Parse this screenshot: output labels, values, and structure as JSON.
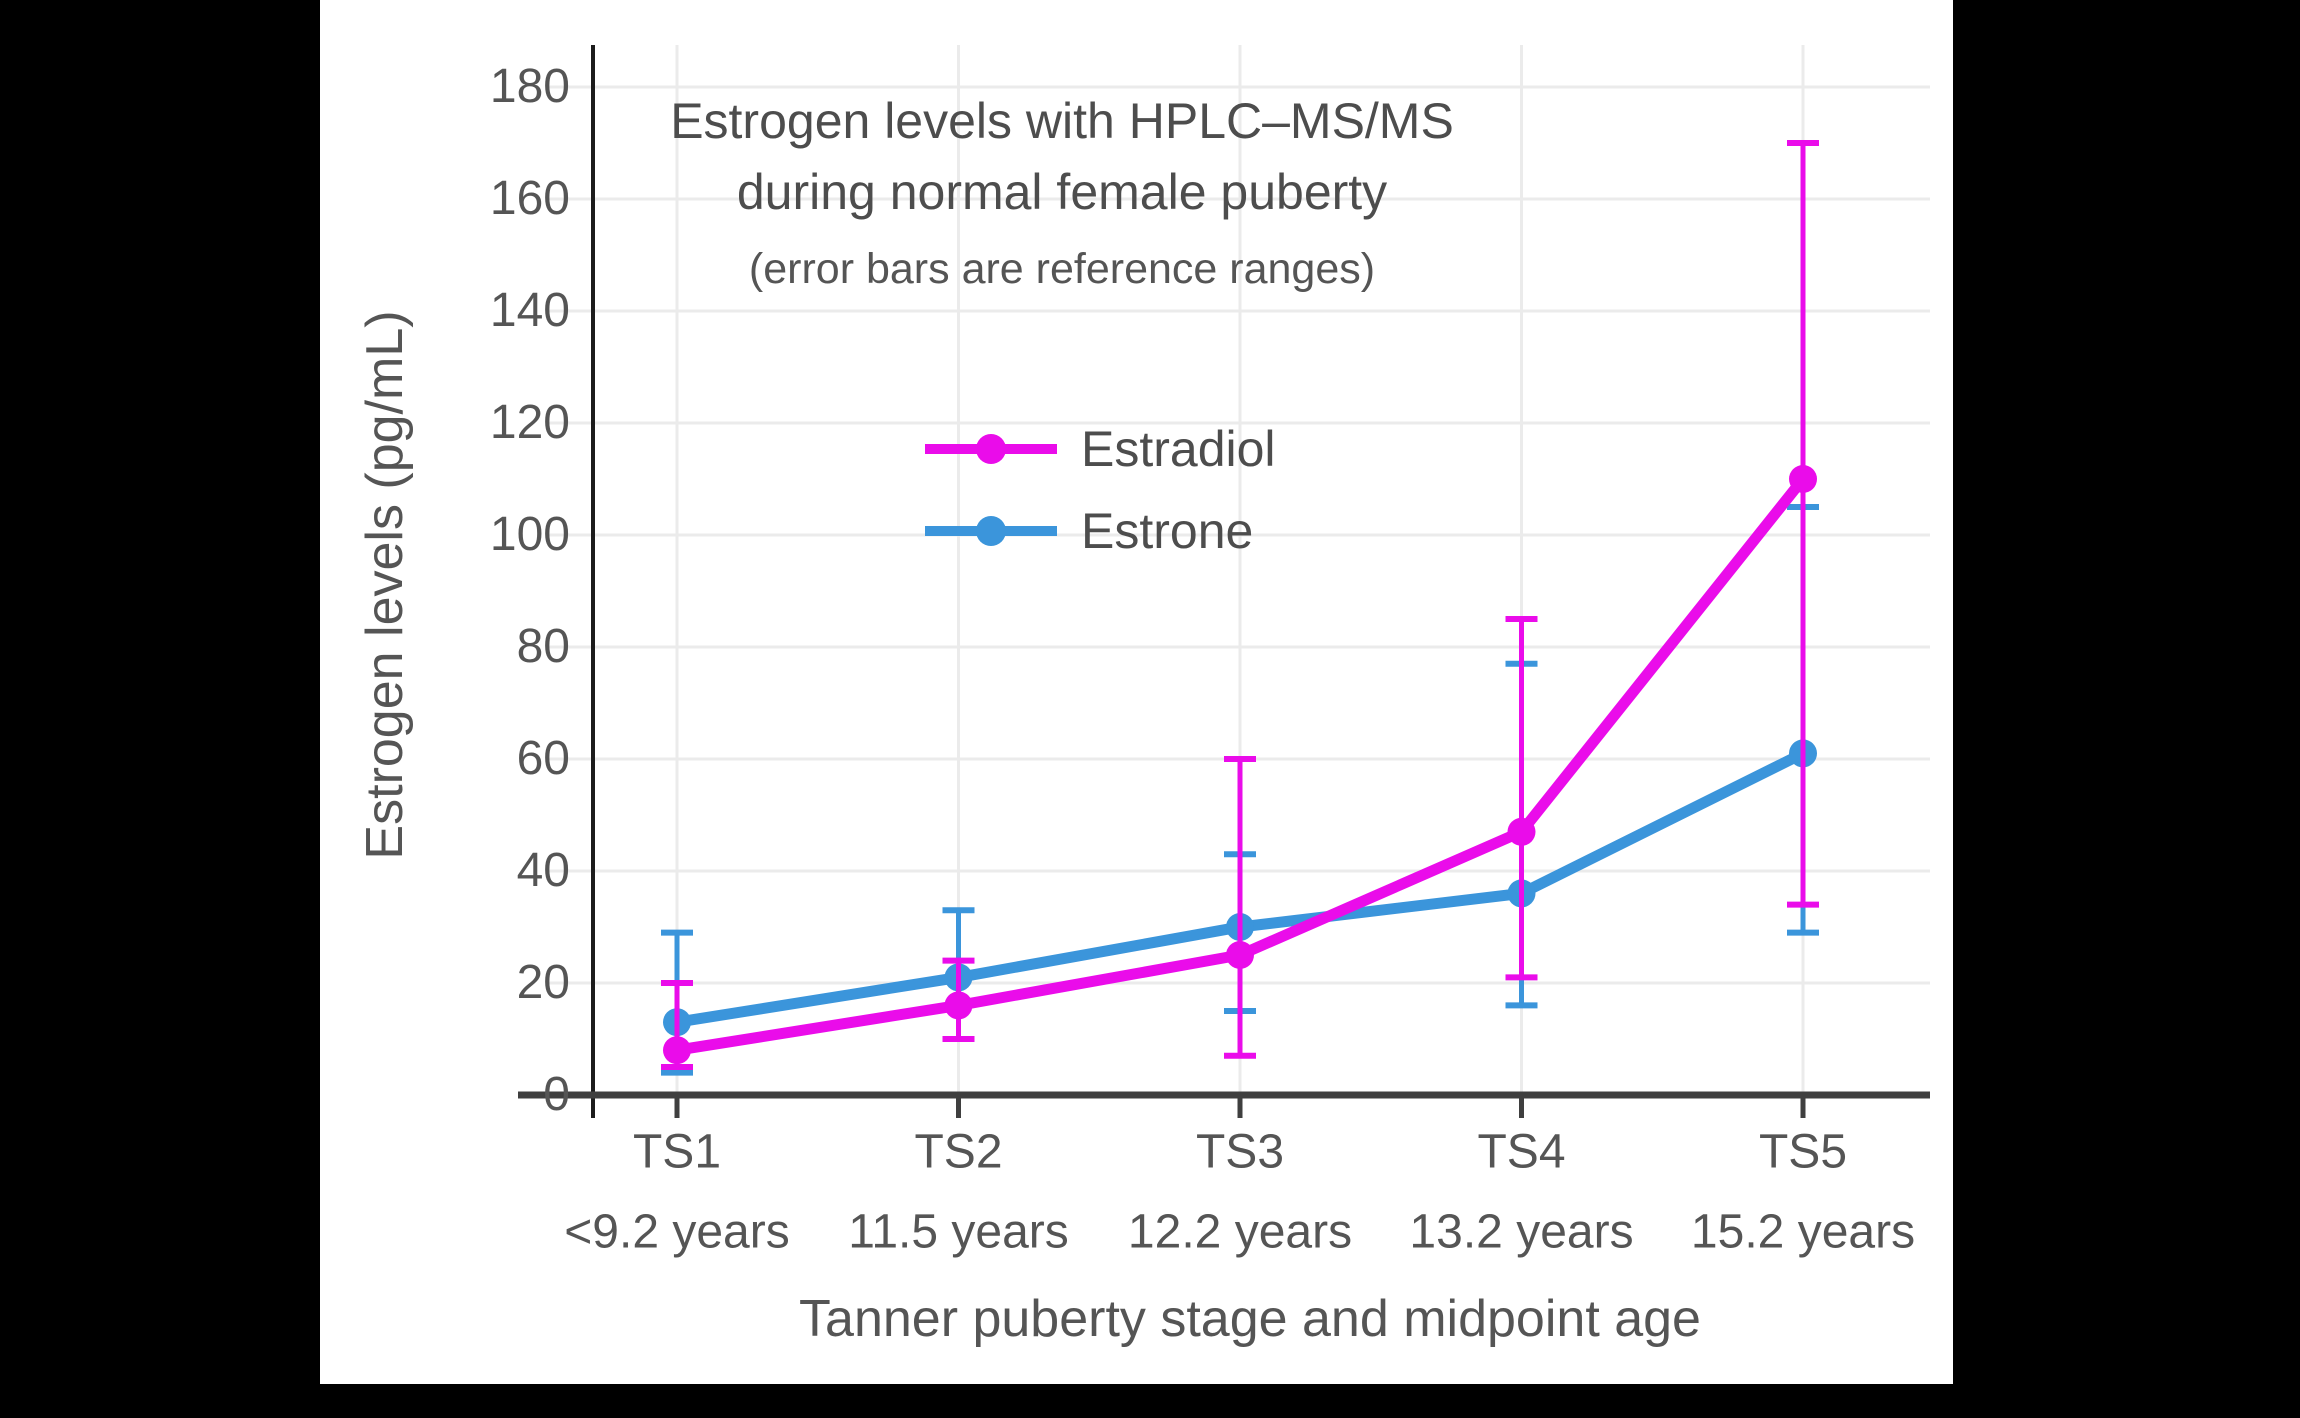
{
  "figure": {
    "background": "#000000",
    "canvas_background": "#ffffff"
  },
  "chart_data": {
    "type": "line",
    "title_line1": "Estrogen levels with HPLC–MS/MS",
    "title_line2": "during normal female puberty",
    "subtitle": "(error bars are reference ranges)",
    "xlabel": "Tanner puberty stage and midpoint age",
    "ylabel": "Estrogen levels (pg/mL)",
    "categories": [
      "TS1",
      "TS2",
      "TS3",
      "TS4",
      "TS5"
    ],
    "category_sublabels": [
      "<9.2 years",
      "11.5 years",
      "12.2 years",
      "13.2 years",
      "15.2 years"
    ],
    "ylim": [
      0,
      180
    ],
    "ytick_step": 20,
    "grid": true,
    "legend_position": "upper-left-of-center",
    "error_bar_meaning": "reference ranges",
    "series": [
      {
        "name": "Estradiol",
        "color": "#EA0CEA",
        "values": [
          8,
          16,
          25,
          47,
          110
        ],
        "err_low": [
          5,
          10,
          7,
          21,
          34
        ],
        "err_high": [
          20,
          24,
          60,
          85,
          170
        ]
      },
      {
        "name": "Estrone",
        "color": "#3B95DB",
        "values": [
          13,
          21,
          30,
          36,
          61
        ],
        "err_low": [
          4,
          10,
          15,
          16,
          29
        ],
        "err_high": [
          29,
          33,
          43,
          77,
          105
        ]
      }
    ],
    "style": {
      "grid_color": "#ebebeb",
      "x_spine_color": "#3f3f3f",
      "y_spine_color": "#1c1c1c",
      "text_color": "#555555"
    }
  }
}
